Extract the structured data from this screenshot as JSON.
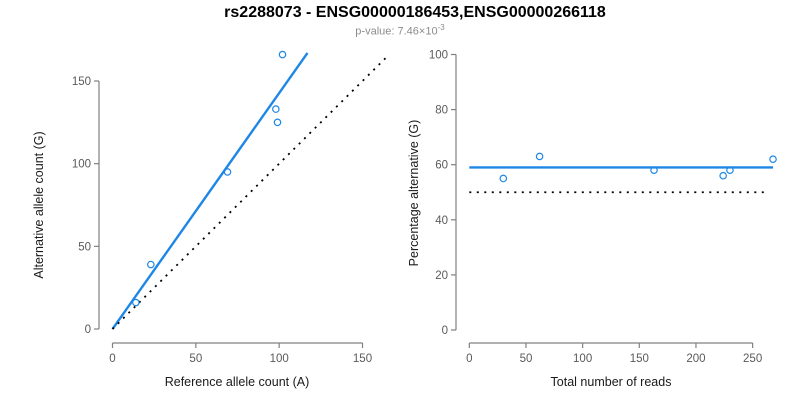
{
  "header": {
    "title": "rs2288073 - ENSG00000186453,ENSG00000266118",
    "subtitle_prefix": "p-value: 7.46×10",
    "subtitle_exponent": "-3",
    "p_value": "7.46e-3"
  },
  "colors": {
    "accent_blue": "#1E87E5",
    "dotted_black": "#000000",
    "axis_line": "#808080",
    "tick_label": "#5a5a5a",
    "axis_title": "#1a1a1a",
    "subtitle_gray": "#8c8c8c"
  },
  "chart_data": [
    {
      "type": "scatter",
      "title": "",
      "xlabel": "Reference allele count (A)",
      "ylabel": "Alternative allele count (G)",
      "xticks": [
        0,
        50,
        100,
        150
      ],
      "yticks": [
        0,
        50,
        100,
        150
      ],
      "xlim": [
        0,
        165
      ],
      "ylim": [
        0,
        168
      ],
      "grid": false,
      "legend": null,
      "points": [
        [
          14,
          16
        ],
        [
          23,
          39
        ],
        [
          69,
          95
        ],
        [
          98,
          133
        ],
        [
          99,
          125
        ],
        [
          102,
          166
        ]
      ],
      "point_style": {
        "shape": "open-circle",
        "color": "#1E87E5",
        "radius": 3.2
      },
      "lines": [
        {
          "name": "fit-line",
          "x1": 0,
          "y1": 0,
          "x2": 117,
          "y2": 167,
          "color": "#1E87E5",
          "dash": "solid",
          "width": 2.4
        },
        {
          "name": "identity-line",
          "x1": 0,
          "y1": 0,
          "x2": 164,
          "y2": 164,
          "color": "#000000",
          "dash": "dotted",
          "width": 1.8
        }
      ]
    },
    {
      "type": "scatter",
      "title": "",
      "xlabel": "Total number of reads",
      "ylabel": "Percentage alternative (G)",
      "xticks": [
        0,
        50,
        100,
        150,
        200,
        250
      ],
      "yticks": [
        0,
        20,
        40,
        60,
        80,
        100
      ],
      "xlim": [
        0,
        270
      ],
      "ylim": [
        0,
        100
      ],
      "grid": false,
      "legend": null,
      "points": [
        [
          30,
          55
        ],
        [
          62,
          63
        ],
        [
          163,
          58
        ],
        [
          224,
          56
        ],
        [
          230,
          58
        ],
        [
          268,
          62
        ]
      ],
      "point_style": {
        "shape": "open-circle",
        "color": "#1E87E5",
        "radius": 3.2
      },
      "lines": [
        {
          "name": "fit-line",
          "x1": 0,
          "y1": 59,
          "x2": 268,
          "y2": 59,
          "color": "#1E87E5",
          "dash": "solid",
          "width": 2.4
        },
        {
          "name": "reference-line",
          "x1": 0,
          "y1": 50,
          "x2": 262,
          "y2": 50,
          "color": "#000000",
          "dash": "dotted",
          "width": 1.8
        }
      ]
    }
  ]
}
